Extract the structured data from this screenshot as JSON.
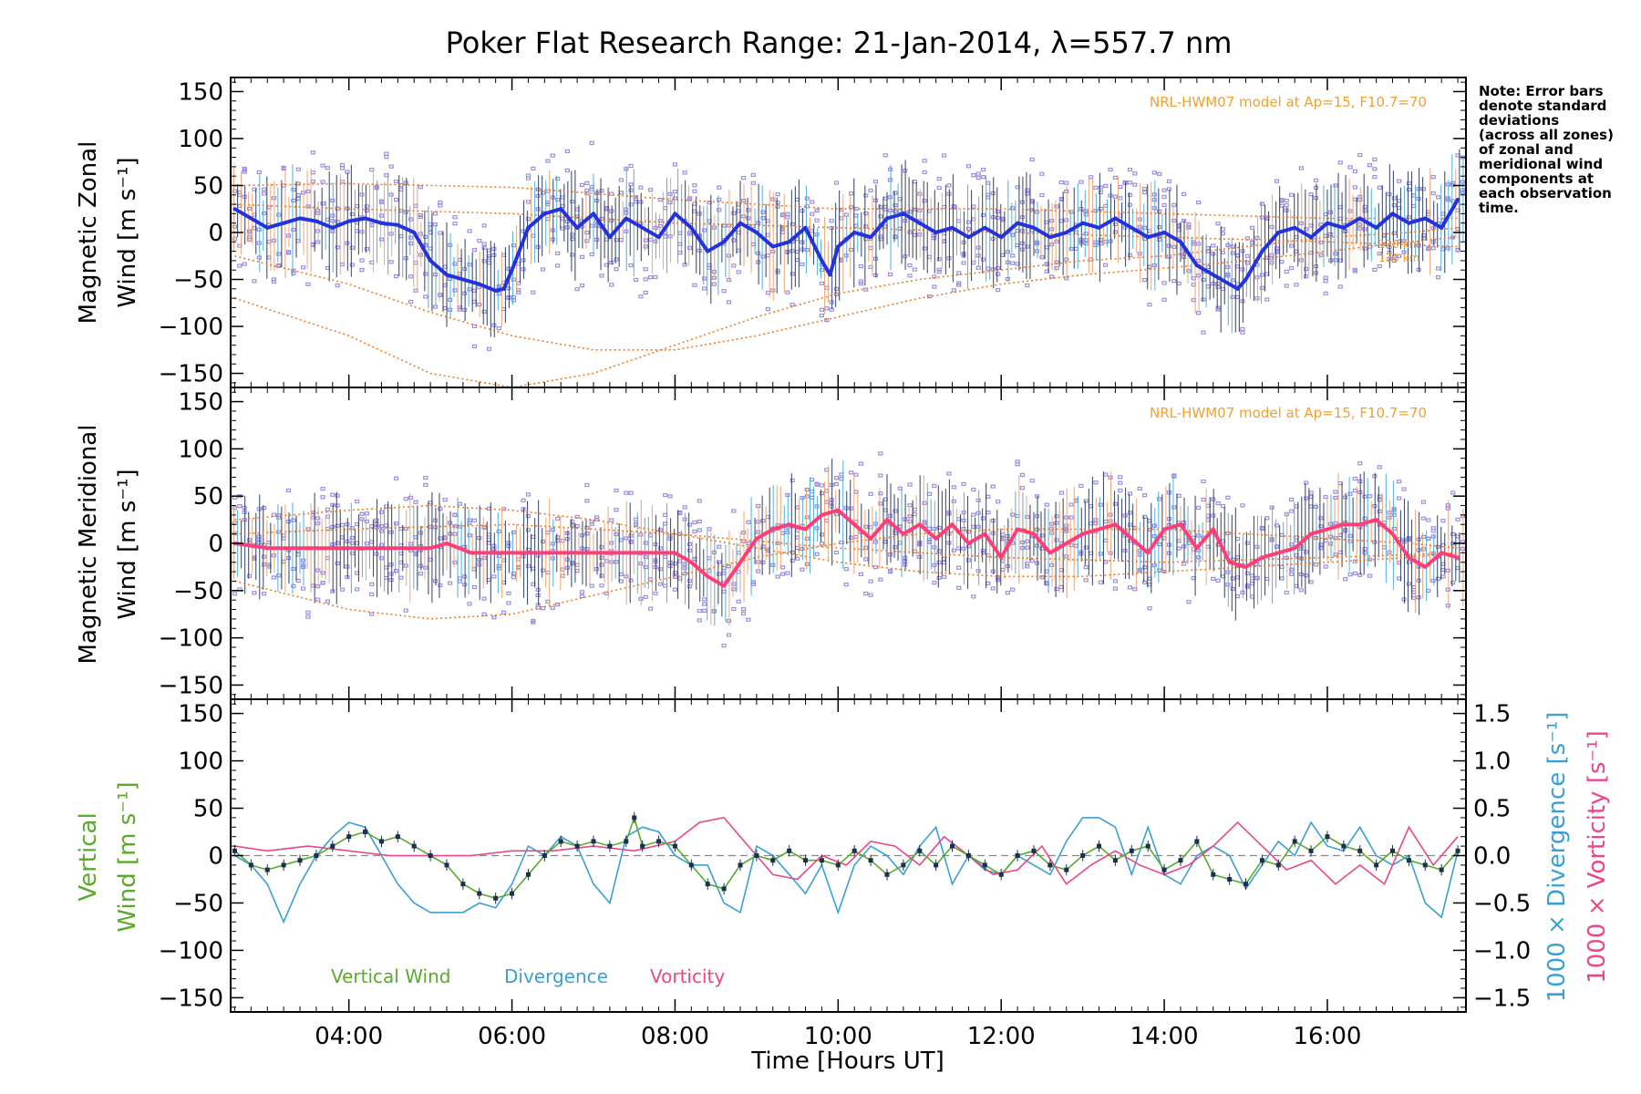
{
  "title": "Poker Flat Research Range: 21-Jan-2014, λ=557.7 nm",
  "note_lines": [
    "Note: Error bars",
    "denote standard",
    "deviations",
    "(across all zones)",
    "of zonal and",
    "meridional wind",
    "components at",
    "each observation",
    "time."
  ],
  "model_note": "NRL-HWM07 model at Ap=15, F10.7=70",
  "model_height_labels": [
    "120 km",
    "130 km"
  ],
  "colors": {
    "zonal": "#2233dd",
    "zonal_light": "#44aadd",
    "meridional": "#ff3d77",
    "model": "#f07a20",
    "zones": "#9b8fe0",
    "vertical": "#5aaa2a",
    "divergence": "#3a9fd6",
    "vorticity": "#ee4488",
    "errbar": "#223355"
  },
  "chart_data": [
    {
      "type": "line",
      "panel": "zonal",
      "ylabel_line1": "Magnetic Zonal",
      "ylabel_line2": "Wind [m s⁻¹]",
      "ylim": [
        -165,
        165
      ],
      "yticks": [
        -150,
        -100,
        -50,
        0,
        50,
        100,
        150
      ],
      "xlim": [
        2.55,
        17.7
      ],
      "series": [
        {
          "x": [
            2.6,
            2.8,
            3.0,
            3.2,
            3.4,
            3.6,
            3.8,
            4.0,
            4.2,
            4.4,
            4.6,
            4.8,
            5.0,
            5.2,
            5.4,
            5.6,
            5.8,
            5.9,
            6.0,
            6.2,
            6.4,
            6.6,
            6.8,
            7.0,
            7.2,
            7.4,
            7.6,
            7.8,
            8.0,
            8.2,
            8.4,
            8.6,
            8.8,
            9.0,
            9.2,
            9.4,
            9.6,
            9.8,
            9.9,
            10.0,
            10.2,
            10.4,
            10.6,
            10.8,
            11.0,
            11.2,
            11.4,
            11.6,
            11.8,
            12.0,
            12.2,
            12.4,
            12.6,
            12.8,
            13.0,
            13.2,
            13.4,
            13.6,
            13.8,
            14.0,
            14.2,
            14.4,
            14.6,
            14.8,
            14.9,
            15.0,
            15.2,
            15.4,
            15.6,
            15.8,
            16.0,
            16.2,
            16.4,
            16.6,
            16.8,
            17.0,
            17.2,
            17.4,
            17.6
          ],
          "y": [
            25,
            15,
            5,
            10,
            15,
            12,
            5,
            12,
            15,
            10,
            8,
            0,
            -30,
            -45,
            -50,
            -55,
            -62,
            -60,
            -40,
            5,
            20,
            25,
            5,
            20,
            -5,
            15,
            5,
            -5,
            20,
            5,
            -20,
            -10,
            10,
            0,
            -15,
            -10,
            5,
            -30,
            -45,
            -15,
            0,
            -5,
            15,
            20,
            10,
            0,
            5,
            -5,
            5,
            -5,
            10,
            5,
            -5,
            0,
            10,
            5,
            15,
            5,
            -5,
            0,
            -10,
            -35,
            -45,
            -55,
            -60,
            -50,
            -20,
            0,
            5,
            -5,
            10,
            5,
            15,
            5,
            20,
            10,
            15,
            5,
            35
          ]
        }
      ],
      "model_curves": [
        {
          "x": [
            2.6,
            4,
            5,
            6,
            7,
            8,
            9,
            10,
            11,
            12,
            13,
            14,
            15,
            16,
            17,
            17.6
          ],
          "y": [
            -25,
            -55,
            -85,
            -110,
            -125,
            -125,
            -110,
            -90,
            -70,
            -55,
            -45,
            -38,
            -30,
            -20,
            -10,
            -5
          ]
        },
        {
          "x": [
            2.6,
            4,
            5,
            6,
            7,
            8,
            9,
            10,
            11,
            12,
            13,
            14,
            15,
            16,
            17,
            17.6
          ],
          "y": [
            -70,
            -110,
            -150,
            -165,
            -150,
            -120,
            -90,
            -65,
            -50,
            -40,
            -30,
            -25,
            -15,
            -5,
            0,
            5
          ]
        },
        {
          "x": [
            2.6,
            4,
            6,
            8,
            10,
            12,
            14,
            16,
            17.6
          ],
          "y": [
            50,
            52,
            48,
            35,
            25,
            25,
            20,
            15,
            15
          ]
        },
        {
          "x": [
            2.6,
            4,
            6,
            8,
            10,
            12,
            14,
            16,
            17.6
          ],
          "y": [
            30,
            25,
            20,
            10,
            5,
            0,
            -5,
            -10,
            -15
          ]
        }
      ]
    },
    {
      "type": "line",
      "panel": "meridional",
      "ylabel_line1": "Magnetic Meridional",
      "ylabel_line2": "Wind [m s⁻¹]",
      "ylim": [
        -165,
        165
      ],
      "yticks": [
        -150,
        -100,
        -50,
        0,
        50,
        100,
        150
      ],
      "xlim": [
        2.55,
        17.7
      ],
      "series": [
        {
          "x": [
            2.6,
            3.0,
            3.5,
            4.0,
            4.5,
            5.0,
            5.2,
            5.5,
            6.0,
            6.5,
            7.0,
            7.5,
            8.0,
            8.2,
            8.4,
            8.6,
            8.8,
            9.0,
            9.2,
            9.4,
            9.6,
            9.8,
            10.0,
            10.2,
            10.4,
            10.6,
            10.8,
            11.0,
            11.2,
            11.4,
            11.6,
            11.8,
            12.0,
            12.2,
            12.4,
            12.6,
            12.8,
            13.0,
            13.2,
            13.4,
            13.6,
            13.8,
            14.0,
            14.2,
            14.4,
            14.6,
            14.8,
            15.0,
            15.2,
            15.4,
            15.6,
            15.8,
            16.0,
            16.2,
            16.4,
            16.6,
            16.8,
            17.0,
            17.2,
            17.4,
            17.6
          ],
          "y": [
            0,
            -5,
            -5,
            -5,
            -5,
            -5,
            0,
            -10,
            -10,
            -10,
            -10,
            -10,
            -10,
            -20,
            -35,
            -45,
            -20,
            5,
            15,
            20,
            15,
            30,
            35,
            20,
            5,
            25,
            10,
            20,
            5,
            20,
            0,
            10,
            -15,
            15,
            10,
            -10,
            0,
            10,
            15,
            20,
            5,
            -10,
            15,
            20,
            -5,
            15,
            -20,
            -25,
            -15,
            -10,
            -5,
            10,
            15,
            20,
            20,
            25,
            10,
            -15,
            -25,
            -10,
            -15
          ]
        }
      ],
      "model_curves": [
        {
          "x": [
            2.6,
            4,
            5,
            6,
            7,
            8,
            9,
            10,
            11,
            12,
            13,
            14,
            15,
            16,
            17,
            17.6
          ],
          "y": [
            -40,
            -70,
            -80,
            -75,
            -55,
            -35,
            -15,
            0,
            10,
            15,
            15,
            15,
            10,
            5,
            0,
            -5
          ]
        },
        {
          "x": [
            2.6,
            4,
            5,
            6,
            7,
            8,
            9,
            10,
            11,
            12,
            13,
            14,
            15,
            16,
            17,
            17.6
          ],
          "y": [
            25,
            35,
            40,
            35,
            25,
            10,
            -5,
            -20,
            -30,
            -35,
            -35,
            -30,
            -25,
            -20,
            -15,
            -10
          ]
        },
        {
          "x": [
            2.6,
            4,
            6,
            8,
            10,
            12,
            14,
            16,
            17.6
          ],
          "y": [
            10,
            15,
            20,
            10,
            -5,
            -15,
            -20,
            -15,
            -10
          ]
        }
      ]
    },
    {
      "type": "line",
      "panel": "vertical",
      "ylabel_vertical_line1": "Vertical",
      "ylabel_vertical_line2": "Wind [m s⁻¹]",
      "ylabel_divergence": "1000 × Divergence [s⁻¹]",
      "ylabel_vorticity": "1000 × Vorticity [s⁻¹]",
      "xlabel": "Time [Hours UT]",
      "ylim": [
        -165,
        165
      ],
      "yticks": [
        -150,
        -100,
        -50,
        0,
        50,
        100,
        150
      ],
      "y2lim": [
        -1.65,
        1.65
      ],
      "y2ticks": [
        -1.5,
        -1.0,
        -0.5,
        0.0,
        0.5,
        1.0,
        1.5
      ],
      "y2ticklabels": [
        "−1.5",
        "−1.0",
        "−0.5",
        "0.0",
        "0.5",
        "1.0",
        "1.5"
      ],
      "xlim": [
        2.55,
        17.7
      ],
      "xticks": [
        4,
        6,
        8,
        10,
        12,
        14,
        16
      ],
      "xticklabels": [
        "04:00",
        "06:00",
        "08:00",
        "10:00",
        "12:00",
        "14:00",
        "16:00"
      ],
      "legend": [
        "Vertical Wind",
        "Divergence",
        "Vorticity"
      ],
      "series": [
        {
          "name": "Vertical Wind",
          "x": [
            2.6,
            2.8,
            3.0,
            3.2,
            3.4,
            3.6,
            3.8,
            4.0,
            4.2,
            4.4,
            4.6,
            4.8,
            5.0,
            5.2,
            5.4,
            5.6,
            5.8,
            6.0,
            6.2,
            6.4,
            6.6,
            6.8,
            7.0,
            7.2,
            7.4,
            7.5,
            7.6,
            7.8,
            8.0,
            8.2,
            8.4,
            8.6,
            8.8,
            9.0,
            9.2,
            9.4,
            9.6,
            9.8,
            10.0,
            10.2,
            10.4,
            10.6,
            10.8,
            11.0,
            11.2,
            11.4,
            11.6,
            11.8,
            12.0,
            12.2,
            12.4,
            12.6,
            12.8,
            13.0,
            13.2,
            13.4,
            13.6,
            13.8,
            14.0,
            14.2,
            14.4,
            14.6,
            14.8,
            15.0,
            15.2,
            15.4,
            15.6,
            15.8,
            16.0,
            16.2,
            16.4,
            16.6,
            16.8,
            17.0,
            17.2,
            17.4,
            17.6
          ],
          "y": [
            5,
            -10,
            -15,
            -10,
            -5,
            0,
            10,
            20,
            25,
            15,
            20,
            10,
            0,
            -10,
            -30,
            -40,
            -45,
            -40,
            -20,
            0,
            15,
            10,
            15,
            10,
            15,
            40,
            10,
            15,
            10,
            -10,
            -30,
            -35,
            -10,
            0,
            -5,
            5,
            -5,
            -5,
            -10,
            5,
            -5,
            -20,
            -10,
            5,
            -10,
            10,
            0,
            -10,
            -20,
            0,
            5,
            -10,
            -15,
            0,
            10,
            -5,
            5,
            10,
            -15,
            -5,
            15,
            -20,
            -25,
            -30,
            -5,
            -10,
            15,
            5,
            20,
            10,
            5,
            -10,
            5,
            -5,
            -10,
            -15,
            5
          ]
        },
        {
          "name": "Divergence",
          "x": [
            2.6,
            2.8,
            3.0,
            3.2,
            3.4,
            3.6,
            3.8,
            4.0,
            4.2,
            4.4,
            4.6,
            4.8,
            5.0,
            5.2,
            5.4,
            5.6,
            5.8,
            6.0,
            6.2,
            6.4,
            6.6,
            6.8,
            7.0,
            7.2,
            7.4,
            7.6,
            7.8,
            8.0,
            8.2,
            8.4,
            8.6,
            8.8,
            9.0,
            9.2,
            9.4,
            9.6,
            9.8,
            10.0,
            10.2,
            10.4,
            10.6,
            10.8,
            11.0,
            11.2,
            11.4,
            11.6,
            11.8,
            12.0,
            12.2,
            12.4,
            12.6,
            12.8,
            13.0,
            13.2,
            13.4,
            13.6,
            13.8,
            14.0,
            14.2,
            14.4,
            14.6,
            14.8,
            15.0,
            15.2,
            15.4,
            15.6,
            15.8,
            16.0,
            16.2,
            16.4,
            16.6,
            16.8,
            17.0,
            17.2,
            17.4,
            17.6
          ],
          "y": [
            0.0,
            -0.1,
            -0.3,
            -0.7,
            -0.3,
            0.0,
            0.2,
            0.35,
            0.3,
            0.0,
            -0.3,
            -0.5,
            -0.6,
            -0.6,
            -0.6,
            -0.5,
            -0.55,
            -0.3,
            0.1,
            0.0,
            0.2,
            0.1,
            -0.3,
            -0.5,
            0.2,
            0.3,
            0.25,
            0.0,
            -0.1,
            -0.1,
            -0.5,
            -0.6,
            0.1,
            0.0,
            -0.2,
            -0.4,
            -0.1,
            -0.6,
            -0.1,
            0.1,
            0.0,
            -0.2,
            0.1,
            0.3,
            -0.3,
            0.0,
            -0.15,
            -0.2,
            0.0,
            -0.1,
            -0.2,
            0.15,
            0.4,
            0.4,
            0.3,
            -0.2,
            0.3,
            -0.2,
            -0.3,
            0.0,
            0.1,
            0.0,
            -0.35,
            -0.1,
            0.15,
            0.0,
            0.35,
            0.1,
            0.05,
            0.3,
            0.0,
            -0.1,
            0.0,
            -0.5,
            -0.65,
            0.05
          ]
        },
        {
          "name": "Vorticity",
          "x": [
            2.6,
            3.0,
            3.5,
            4.0,
            4.5,
            5.0,
            5.5,
            6.0,
            6.5,
            7.0,
            7.5,
            8.0,
            8.3,
            8.6,
            8.9,
            9.2,
            9.5,
            9.8,
            10.1,
            10.4,
            10.7,
            11.0,
            11.3,
            11.6,
            11.9,
            12.2,
            12.5,
            12.8,
            13.1,
            13.4,
            13.7,
            14.0,
            14.3,
            14.6,
            14.9,
            15.2,
            15.5,
            15.8,
            16.1,
            16.4,
            16.7,
            17.0,
            17.3,
            17.6
          ],
          "y": [
            0.1,
            0.05,
            0.1,
            0.05,
            0.0,
            0.0,
            0.0,
            0.05,
            0.05,
            0.1,
            0.05,
            0.15,
            0.35,
            0.4,
            0.1,
            -0.2,
            -0.25,
            0.0,
            -0.1,
            0.15,
            0.1,
            -0.1,
            0.2,
            0.0,
            -0.2,
            -0.15,
            0.1,
            -0.3,
            -0.1,
            0.05,
            -0.1,
            -0.2,
            -0.1,
            0.1,
            0.35,
            0.1,
            -0.15,
            -0.05,
            -0.3,
            -0.1,
            -0.3,
            0.3,
            -0.1,
            0.2
          ]
        }
      ]
    }
  ]
}
